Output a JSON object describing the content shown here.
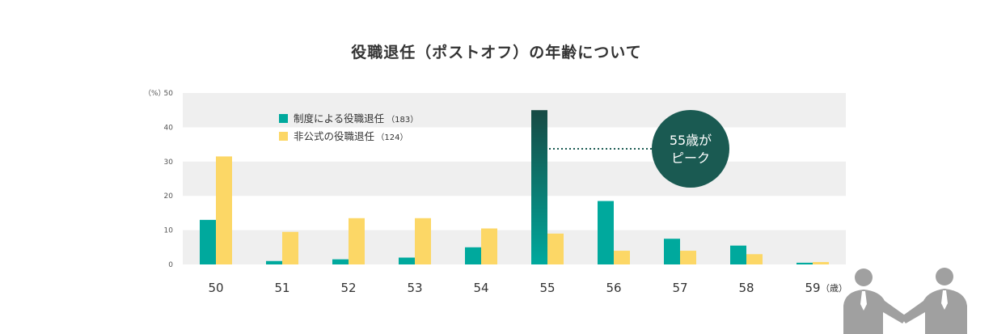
{
  "chart_data": {
    "type": "bar",
    "title": "役職退任（ポストオフ）の年齢について",
    "ylabel": "（%）",
    "xunit": "（歳）",
    "categories": [
      "50",
      "51",
      "52",
      "53",
      "54",
      "55",
      "56",
      "57",
      "58",
      "59"
    ],
    "yticks": [
      "0",
      "10",
      "20",
      "30",
      "40",
      "50"
    ],
    "ylim": [
      0,
      50
    ],
    "grid": "alternating bands",
    "legend_position": "top-left",
    "series": [
      {
        "name": "制度による役職退任",
        "count": "（183）",
        "color": "#00a99d",
        "values": [
          13,
          1,
          1.5,
          2,
          5,
          45,
          18.5,
          7.5,
          5.5,
          0.5
        ]
      },
      {
        "name": "非公式の役職退任",
        "count": "（124）",
        "color": "#fcd766",
        "values": [
          31.5,
          9.5,
          13.5,
          13.5,
          10.5,
          9,
          4,
          4,
          3,
          0.7
        ]
      }
    ],
    "highlight": {
      "category": "55",
      "color": "#1a5a52"
    },
    "annotation": {
      "line1": "55歳が",
      "line2": "ピーク",
      "color": "#1a5a52"
    }
  }
}
